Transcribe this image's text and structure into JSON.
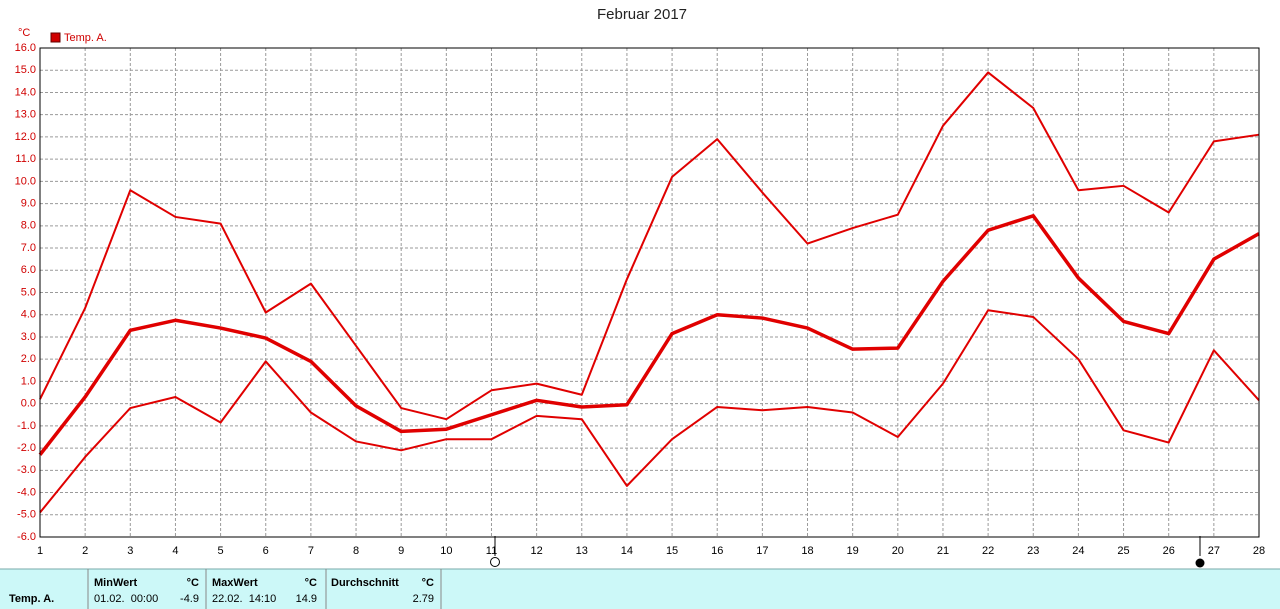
{
  "chart_data": {
    "type": "line",
    "title": "Februar 2017",
    "unit": "°C",
    "legend": "Temp. A.",
    "color": "#e00000",
    "grid": true,
    "x": [
      1,
      2,
      3,
      4,
      5,
      6,
      7,
      8,
      9,
      10,
      11,
      12,
      13,
      14,
      15,
      16,
      17,
      18,
      19,
      20,
      21,
      22,
      23,
      24,
      25,
      26,
      27,
      28
    ],
    "xlim": [
      1,
      28
    ],
    "xticks": [
      1,
      2,
      3,
      4,
      5,
      6,
      7,
      8,
      9,
      10,
      11,
      12,
      13,
      14,
      15,
      16,
      17,
      18,
      19,
      20,
      21,
      22,
      23,
      24,
      25,
      26,
      27,
      28
    ],
    "ylim": [
      -6,
      16
    ],
    "yticks": [
      {
        "value": -6,
        "label": "-6.0"
      },
      {
        "value": -5,
        "label": "-5.0"
      },
      {
        "value": -4,
        "label": "-4.0"
      },
      {
        "value": -3,
        "label": "-3.0"
      },
      {
        "value": -2,
        "label": "-2.0"
      },
      {
        "value": -1,
        "label": "-1.0"
      },
      {
        "value": 0,
        "label": "0.0"
      },
      {
        "value": 1,
        "label": "1.0"
      },
      {
        "value": 2,
        "label": "2.0"
      },
      {
        "value": 3,
        "label": "3.0"
      },
      {
        "value": 4,
        "label": "4.0"
      },
      {
        "value": 5,
        "label": "5.0"
      },
      {
        "value": 6,
        "label": "6.0"
      },
      {
        "value": 7,
        "label": "7.0"
      },
      {
        "value": 8,
        "label": "8.0"
      },
      {
        "value": 9,
        "label": "9.0"
      },
      {
        "value": 10,
        "label": "10.0"
      },
      {
        "value": 11,
        "label": "11.0"
      },
      {
        "value": 12,
        "label": "12.0"
      },
      {
        "value": 13,
        "label": "13.0"
      },
      {
        "value": 14,
        "label": "14.0"
      },
      {
        "value": 15,
        "label": "15.0"
      },
      {
        "value": 16,
        "label": "16.0"
      }
    ],
    "series": [
      {
        "line_width": 2,
        "values": [
          0.2,
          4.3,
          9.6,
          8.4,
          8.1,
          4.1,
          5.4,
          2.6,
          -0.2,
          -0.7,
          0.6,
          0.9,
          0.4,
          5.6,
          10.2,
          11.9,
          9.5,
          7.2,
          7.9,
          8.5,
          12.5,
          14.9,
          13.3,
          9.6,
          9.8,
          8.6,
          11.8,
          12.1
        ]
      },
      {
        "line_width": 3.5,
        "values": [
          -2.3,
          0.3,
          3.3,
          3.75,
          3.4,
          2.95,
          1.9,
          -0.1,
          -1.25,
          -1.15,
          -0.5,
          0.15,
          -0.15,
          -0.05,
          3.15,
          4.0,
          3.85,
          3.4,
          2.45,
          2.5,
          5.5,
          7.8,
          8.45,
          5.65,
          3.7,
          3.15,
          6.5,
          7.65
        ]
      },
      {
        "line_width": 2,
        "values": [
          -4.9,
          -2.4,
          -0.2,
          0.3,
          -0.85,
          1.9,
          -0.4,
          -1.7,
          -2.1,
          -1.6,
          -1.6,
          -0.55,
          -0.7,
          -3.7,
          -1.6,
          -0.15,
          -0.3,
          -0.15,
          -0.4,
          -1.5,
          0.9,
          4.2,
          3.9,
          2.0,
          -1.2,
          -1.75,
          2.4,
          0.15
        ]
      }
    ]
  },
  "summary": {
    "row_label": "Temp. A.",
    "columns": [
      {
        "title": "MinWert",
        "unit": "°C",
        "time": "01.02.  00:00",
        "value": -4.9
      },
      {
        "title": "MaxWert",
        "unit": "°C",
        "time": "22.02.  14:10",
        "value": 14.9
      },
      {
        "title": "Durchschnitt",
        "unit": "°C",
        "value": 2.79
      }
    ]
  }
}
